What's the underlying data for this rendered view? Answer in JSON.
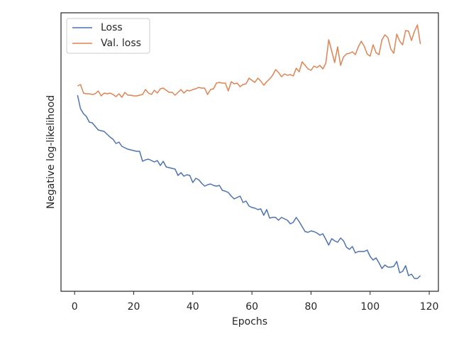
{
  "chart_data": {
    "type": "line",
    "xlabel": "Epochs",
    "ylabel": "Negative log-likelihood",
    "x": [
      1,
      2,
      3,
      4,
      5,
      6,
      7,
      8,
      9,
      10,
      11,
      12,
      13,
      14,
      15,
      16,
      17,
      18,
      19,
      20,
      21,
      22,
      23,
      24,
      25,
      26,
      27,
      28,
      29,
      30,
      31,
      32,
      33,
      34,
      35,
      36,
      37,
      38,
      39,
      40,
      41,
      42,
      43,
      44,
      45,
      46,
      47,
      48,
      49,
      50,
      51,
      52,
      53,
      54,
      55,
      56,
      57,
      58,
      59,
      60,
      61,
      62,
      63,
      64,
      65,
      66,
      67,
      68,
      69,
      70,
      71,
      72,
      73,
      74,
      75,
      76,
      77,
      78,
      79,
      80,
      81,
      82,
      83,
      84,
      85,
      86,
      87,
      88,
      89,
      90,
      91,
      92,
      93,
      94,
      95,
      96,
      97,
      98,
      99,
      100,
      101,
      102,
      103,
      104,
      105,
      106,
      107,
      108,
      109,
      110,
      111,
      112,
      113,
      114,
      115,
      116,
      117
    ],
    "series": [
      {
        "name": "Loss",
        "color": "#4c72b0",
        "values": [
          276,
          257,
          250,
          246,
          238,
          237,
          232,
          227,
          226,
          225,
          221,
          217,
          214,
          208,
          210,
          204,
          202,
          200,
          199,
          198,
          197,
          197,
          183,
          185,
          186,
          184,
          182,
          184,
          177,
          183,
          175,
          174,
          173,
          172,
          163,
          167,
          162,
          164,
          163,
          153,
          159,
          157,
          152,
          148,
          150,
          151,
          149,
          148,
          149,
          142,
          141,
          139,
          134,
          130,
          132,
          134,
          125,
          127,
          120,
          118,
          117,
          115,
          116,
          107,
          115,
          103,
          104,
          104,
          100,
          104,
          102,
          100,
          95,
          97,
          104,
          98,
          91,
          84,
          83,
          85,
          84,
          82,
          79,
          81,
          73,
          65,
          74,
          71,
          69,
          75,
          71,
          62,
          59,
          63,
          54,
          56,
          56,
          56,
          58,
          49,
          44,
          47,
          40,
          32,
          37,
          34,
          34,
          35,
          42,
          26,
          28,
          36,
          22,
          24,
          18,
          18,
          22
        ]
      },
      {
        "name": "Val. loss",
        "color": "#dd8452",
        "values": [
          289,
          291,
          279,
          278,
          278,
          277,
          278,
          282,
          275,
          279,
          278,
          279,
          277,
          274,
          278,
          273,
          280,
          276,
          276,
          275,
          275,
          276,
          277,
          284,
          279,
          277,
          283,
          279,
          285,
          286,
          283,
          280,
          280,
          276,
          280,
          284,
          279,
          283,
          282,
          284,
          285,
          287,
          286,
          286,
          277,
          284,
          285,
          293,
          294,
          293,
          293,
          282,
          295,
          292,
          293,
          288,
          291,
          292,
          300,
          297,
          294,
          300,
          296,
          290,
          295,
          299,
          304,
          312,
          308,
          302,
          306,
          304,
          305,
          303,
          314,
          309,
          323,
          318,
          313,
          311,
          317,
          315,
          318,
          313,
          321,
          354,
          338,
          322,
          344,
          318,
          330,
          334,
          335,
          337,
          333,
          344,
          352,
          345,
          334,
          331,
          347,
          336,
          333,
          354,
          361,
          357,
          341,
          335,
          362,
          352,
          347,
          367,
          366,
          353,
          366,
          375,
          348
        ]
      }
    ],
    "xlim": [
      -4.6,
      123.1
    ],
    "xticks": [
      0,
      20,
      40,
      60,
      80,
      100,
      120
    ],
    "ylim": [
      0,
      392
    ],
    "legend": "upper left"
  }
}
